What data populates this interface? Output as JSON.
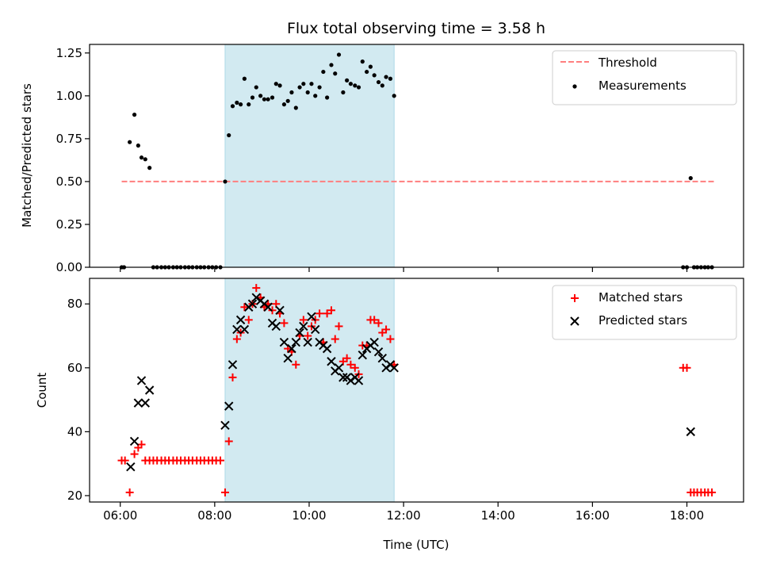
{
  "chart_data": [
    {
      "type": "scatter",
      "title": "Flux total observing time = 3.58 h",
      "ylabel": "Matched/Predicted stars",
      "xlabel": "",
      "x_unit": "hours UTC",
      "xlim": [
        5.35,
        19.2
      ],
      "ylim": [
        0,
        1.3
      ],
      "x_ticks": [
        6,
        8,
        10,
        12,
        14,
        16,
        18
      ],
      "y_ticks": [
        0,
        0.25,
        0.5,
        0.75,
        1.0,
        1.25
      ],
      "y_tick_labels": [
        "0.00",
        "0.25",
        "0.50",
        "0.75",
        "1.00",
        "1.25"
      ],
      "shaded_region": [
        8.22,
        11.8
      ],
      "shaded_color": "#add8e6",
      "legend_position": "top-right",
      "legend": [
        {
          "label": "Threshold",
          "marker": "dashed-line",
          "color": "#ff7f7f"
        },
        {
          "label": "Measurements",
          "marker": "dot",
          "color": "#000000"
        }
      ],
      "threshold": {
        "y": 0.5,
        "x_start": 6.03,
        "x_end": 18.58
      },
      "series": [
        {
          "name": "Measurements",
          "color": "#000000",
          "x": [
            6.03,
            6.08,
            6.2,
            6.3,
            6.38,
            6.45,
            6.53,
            6.62,
            6.7,
            6.78,
            6.87,
            6.95,
            7.03,
            7.12,
            7.2,
            7.28,
            7.37,
            7.45,
            7.53,
            7.62,
            7.7,
            7.78,
            7.87,
            7.95,
            8.03,
            8.12,
            8.22,
            8.3,
            8.38,
            8.47,
            8.55,
            8.63,
            8.72,
            8.8,
            8.88,
            8.97,
            9.05,
            9.13,
            9.22,
            9.3,
            9.38,
            9.47,
            9.55,
            9.63,
            9.72,
            9.8,
            9.88,
            9.97,
            10.05,
            10.13,
            10.22,
            10.3,
            10.38,
            10.47,
            10.55,
            10.63,
            10.72,
            10.8,
            10.88,
            10.97,
            11.05,
            11.13,
            11.22,
            11.3,
            11.38,
            11.47,
            11.55,
            11.63,
            11.72,
            11.8,
            17.92,
            18.0,
            18.08,
            18.15,
            18.22,
            18.3,
            18.38,
            18.45,
            18.53
          ],
          "y": [
            0.0,
            0.0,
            0.73,
            0.89,
            0.71,
            0.64,
            0.63,
            0.58,
            0.0,
            0.0,
            0.0,
            0.0,
            0.0,
            0.0,
            0.0,
            0.0,
            0.0,
            0.0,
            0.0,
            0.0,
            0.0,
            0.0,
            0.0,
            0.0,
            0.0,
            0.0,
            0.5,
            0.77,
            0.94,
            0.96,
            0.95,
            1.1,
            0.95,
            0.99,
            1.05,
            1.0,
            0.98,
            0.98,
            0.99,
            1.07,
            1.06,
            0.95,
            0.97,
            1.02,
            0.93,
            1.05,
            1.07,
            1.02,
            1.07,
            1.0,
            1.05,
            1.14,
            0.99,
            1.18,
            1.13,
            1.24,
            1.02,
            1.09,
            1.07,
            1.06,
            1.05,
            1.2,
            1.14,
            1.17,
            1.12,
            1.08,
            1.06,
            1.11,
            1.1,
            1.0,
            0.0,
            0.0,
            0.52,
            0.0,
            0.0,
            0.0,
            0.0,
            0.0,
            0.0
          ]
        }
      ]
    },
    {
      "type": "scatter",
      "title": "",
      "ylabel": "Count",
      "xlabel": "Time (UTC)",
      "x_unit": "hours UTC",
      "xlim": [
        5.35,
        19.2
      ],
      "ylim": [
        18,
        88
      ],
      "x_ticks": [
        6,
        8,
        10,
        12,
        14,
        16,
        18
      ],
      "x_tick_labels": [
        "06:00",
        "08:00",
        "10:00",
        "12:00",
        "14:00",
        "16:00",
        "18:00"
      ],
      "y_ticks": [
        20,
        40,
        60,
        80
      ],
      "y_tick_labels": [
        "20",
        "40",
        "60",
        "80"
      ],
      "shaded_region": [
        8.22,
        11.8
      ],
      "shaded_color": "#add8e6",
      "legend_position": "top-right",
      "legend": [
        {
          "label": "Matched stars",
          "marker": "plus",
          "color": "#ff0000"
        },
        {
          "label": "Predicted stars",
          "marker": "x",
          "color": "#000000"
        }
      ],
      "series": [
        {
          "name": "Matched stars",
          "color": "#ff0000",
          "x": [
            6.03,
            6.1,
            6.2,
            6.3,
            6.38,
            6.45,
            6.53,
            6.62,
            6.7,
            6.78,
            6.87,
            6.95,
            7.03,
            7.12,
            7.2,
            7.28,
            7.37,
            7.45,
            7.53,
            7.62,
            7.7,
            7.78,
            7.87,
            7.95,
            8.03,
            8.12,
            8.22,
            8.3,
            8.38,
            8.47,
            8.55,
            8.63,
            8.72,
            8.8,
            8.88,
            8.97,
            9.05,
            9.13,
            9.22,
            9.3,
            9.38,
            9.47,
            9.55,
            9.63,
            9.72,
            9.8,
            9.88,
            9.97,
            10.05,
            10.13,
            10.22,
            10.3,
            10.38,
            10.47,
            10.55,
            10.63,
            10.72,
            10.8,
            10.88,
            10.97,
            11.05,
            11.13,
            11.22,
            11.3,
            11.38,
            11.47,
            11.55,
            11.63,
            11.72,
            11.8,
            17.92,
            18.0,
            18.08,
            18.15,
            18.22,
            18.3,
            18.38,
            18.45,
            18.53
          ],
          "y": [
            31,
            31,
            21,
            33,
            35,
            36,
            31,
            31,
            31,
            31,
            31,
            31,
            31,
            31,
            31,
            31,
            31,
            31,
            31,
            31,
            31,
            31,
            31,
            31,
            31,
            31,
            21,
            37,
            57,
            69,
            71,
            79,
            75,
            80,
            85,
            82,
            79,
            80,
            78,
            80,
            77,
            74,
            66,
            65,
            61,
            70,
            75,
            70,
            73,
            75,
            77,
            68,
            77,
            78,
            69,
            73,
            62,
            63,
            61,
            60,
            58,
            67,
            67,
            75,
            75,
            74,
            71,
            72,
            69,
            61,
            60,
            60,
            21,
            21,
            21,
            21,
            21,
            21,
            21
          ]
        },
        {
          "name": "Predicted stars",
          "color": "#000000",
          "x": [
            6.22,
            6.3,
            6.38,
            6.45,
            6.53,
            6.62,
            8.22,
            8.3,
            8.38,
            8.47,
            8.55,
            8.63,
            8.72,
            8.8,
            8.88,
            8.97,
            9.05,
            9.13,
            9.22,
            9.3,
            9.38,
            9.47,
            9.55,
            9.63,
            9.72,
            9.8,
            9.88,
            9.97,
            10.05,
            10.13,
            10.22,
            10.3,
            10.38,
            10.47,
            10.55,
            10.63,
            10.72,
            10.8,
            10.88,
            10.97,
            11.05,
            11.13,
            11.22,
            11.3,
            11.38,
            11.47,
            11.55,
            11.63,
            11.72,
            11.8,
            18.08
          ],
          "y": [
            29,
            37,
            49,
            56,
            49,
            53,
            42,
            48,
            61,
            72,
            75,
            72,
            79,
            80,
            82,
            81,
            80,
            79,
            74,
            73,
            78,
            68,
            63,
            66,
            68,
            71,
            73,
            68,
            76,
            72,
            68,
            67,
            66,
            62,
            59,
            60,
            57,
            57,
            56,
            57,
            56,
            64,
            66,
            67,
            68,
            65,
            63,
            60,
            61,
            60,
            40
          ]
        }
      ]
    }
  ]
}
